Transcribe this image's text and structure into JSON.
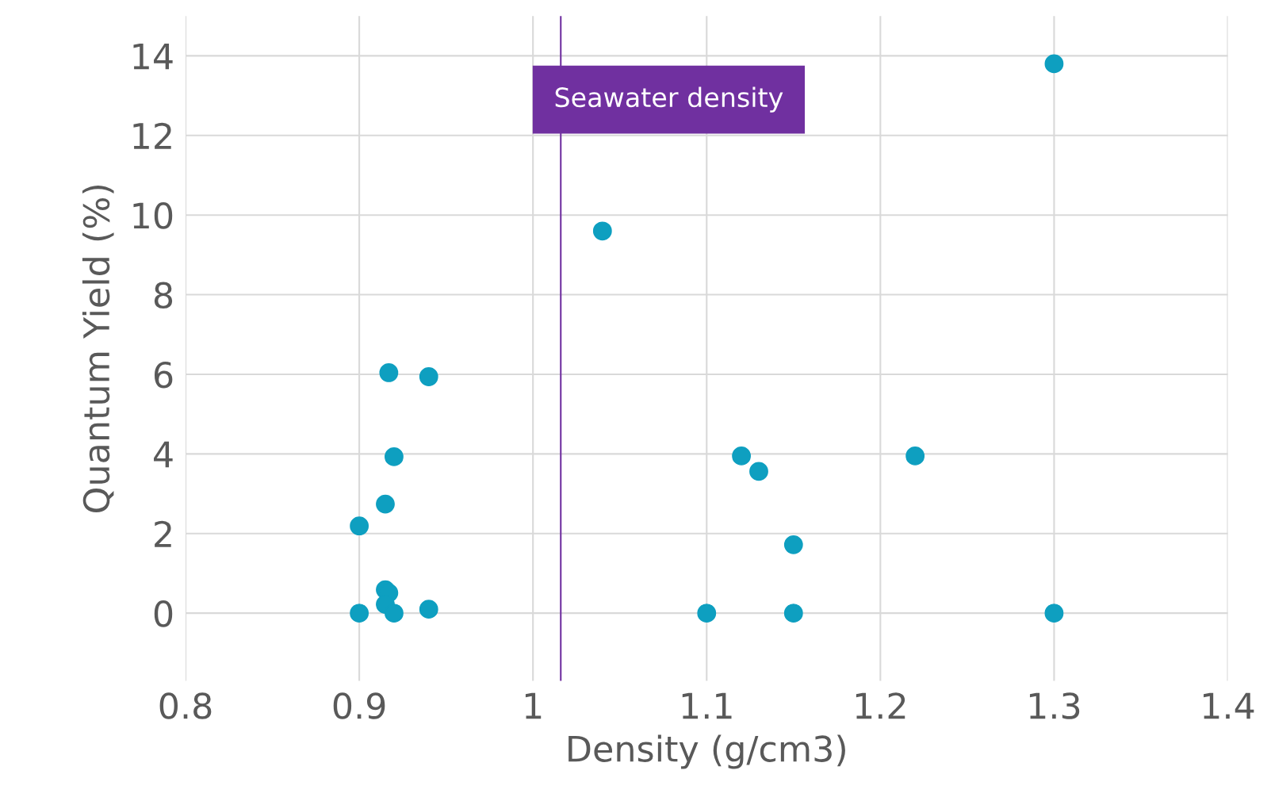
{
  "chart_data": {
    "type": "scatter",
    "xlabel": "Density (g/cm3)",
    "ylabel": "Quantum Yield (%)",
    "x": [
      1.3,
      1.04,
      0.917,
      0.94,
      0.92,
      1.12,
      1.22,
      1.13,
      0.915,
      0.9,
      1.15,
      0.915,
      0.917,
      0.915,
      0.94,
      0.9,
      0.92,
      1.1,
      1.15,
      1.3
    ],
    "series": [
      {
        "color": "#0e9fc0",
        "values": [
          13.8,
          9.6,
          6.04,
          5.94,
          3.93,
          3.95,
          3.95,
          3.56,
          2.74,
          2.19,
          1.72,
          0.59,
          0.51,
          0.22,
          0.1,
          0,
          0,
          0,
          0,
          0
        ]
      }
    ],
    "xlim": [
      0.8,
      1.4
    ],
    "xticks": [
      0.8,
      0.9,
      1,
      1.1,
      1.2,
      1.3,
      1.4
    ],
    "ylim": [
      -1.7,
      15
    ],
    "yticks": [
      0,
      2,
      4,
      6,
      8,
      10,
      12,
      14
    ],
    "ref_lines": [
      {
        "axis": "x",
        "value": 1.016,
        "label": "Seawater density",
        "color": "#7030a0"
      }
    ],
    "grid": true,
    "marker": "circle",
    "legend": false
  }
}
